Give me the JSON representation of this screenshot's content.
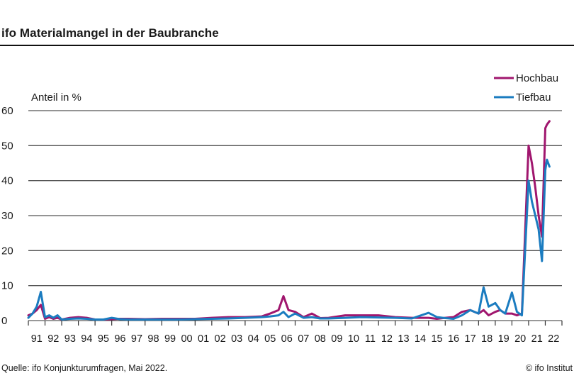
{
  "header": {
    "title": "ifo Materialmangel in der Baubranche"
  },
  "footer": {
    "source": "Quelle: ifo Konjunkturumfragen, Mai 2022.",
    "copyright": "© ifo Institut"
  },
  "colors": {
    "hochbau": "#a0166e",
    "tiefbau": "#1b7cc0",
    "grid": "#555555"
  },
  "chart_data": {
    "type": "line",
    "title": "ifo Materialmangel in der Baubranche",
    "ylabel": "Anteil in %",
    "xlabel": "",
    "ylim": [
      0,
      60
    ],
    "yticks": [
      0,
      10,
      20,
      30,
      40,
      50,
      60
    ],
    "grid": true,
    "legend_position": "top-right",
    "categories": [
      "91",
      "92",
      "93",
      "94",
      "95",
      "96",
      "97",
      "98",
      "99",
      "00",
      "01",
      "02",
      "03",
      "04",
      "05",
      "06",
      "07",
      "08",
      "09",
      "10",
      "11",
      "12",
      "13",
      "14",
      "15",
      "16",
      "17",
      "18",
      "19",
      "20",
      "21",
      "22"
    ],
    "x": [
      1991.0,
      1991.25,
      1991.5,
      1991.75,
      1992.0,
      1992.25,
      1992.5,
      1992.75,
      1993.0,
      1993.5,
      1994.0,
      1994.5,
      1995.0,
      1995.5,
      1996.0,
      1996.5,
      1997.0,
      1998.0,
      1999.0,
      2000.0,
      2001.0,
      2002.0,
      2003.0,
      2004.0,
      2005.0,
      2005.5,
      2006.0,
      2006.3,
      2006.6,
      2007.0,
      2007.5,
      2008.0,
      2008.5,
      2009.0,
      2010.0,
      2011.0,
      2012.0,
      2013.0,
      2014.0,
      2015.0,
      2015.5,
      2016.0,
      2016.5,
      2017.0,
      2017.5,
      2018.0,
      2018.3,
      2018.6,
      2019.0,
      2019.3,
      2019.6,
      2020.0,
      2020.3,
      2020.6,
      2021.0,
      2021.2,
      2021.4,
      2021.6,
      2021.8,
      2022.0,
      2022.1,
      2022.25
    ],
    "series": [
      {
        "name": "Hochbau",
        "values": [
          1.5,
          2,
          3,
          4.5,
          0.5,
          1,
          0.5,
          0.8,
          0.3,
          0.8,
          1,
          0.8,
          0.3,
          0.3,
          0.4,
          0.5,
          0.5,
          0.4,
          0.5,
          0.5,
          0.5,
          0.8,
          1,
          1,
          1.2,
          2,
          3,
          7,
          3,
          2.5,
          1,
          2,
          0.7,
          0.8,
          1.5,
          1.5,
          1.5,
          1,
          0.8,
          0.8,
          0.5,
          0.8,
          1,
          2.5,
          3,
          2,
          3,
          1.5,
          2.5,
          3,
          2,
          2,
          1.5,
          2,
          50,
          45,
          38,
          30,
          24,
          55,
          56,
          57
        ],
        "color": "#a0166e"
      },
      {
        "name": "Tiefbau",
        "values": [
          0.8,
          2,
          4,
          8.2,
          1,
          1.5,
          0.8,
          1.5,
          0.3,
          0.5,
          0.6,
          0.5,
          0.3,
          0.3,
          0.8,
          0.4,
          0.3,
          0.3,
          0.3,
          0.3,
          0.4,
          0.5,
          0.6,
          0.8,
          1,
          1.2,
          1.5,
          2.5,
          1,
          2,
          0.8,
          1,
          0.6,
          0.6,
          0.8,
          1,
          0.9,
          0.8,
          0.6,
          2.2,
          1,
          0.7,
          0.5,
          1.5,
          3,
          2,
          9.5,
          4,
          5,
          3,
          2,
          8,
          2.5,
          1.5,
          40,
          34,
          30,
          26,
          17,
          43,
          46,
          44
        ],
        "color": "#1b7cc0"
      }
    ]
  }
}
